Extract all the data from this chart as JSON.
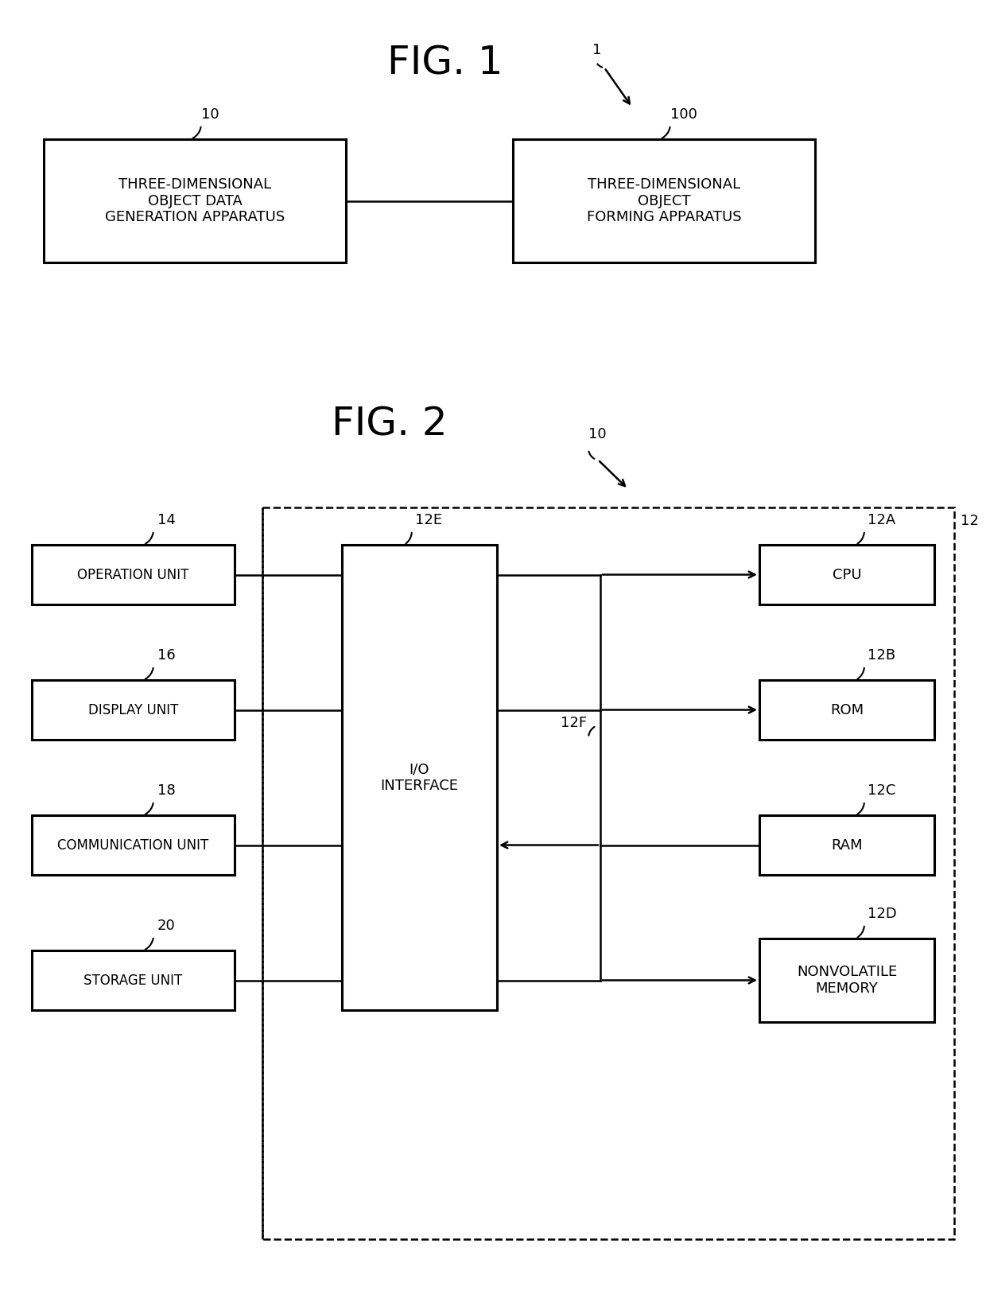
{
  "bg_color": "#ffffff",
  "fig1_title": "FIG. 1",
  "fig1_ref": "1",
  "fig1_box10_label": "THREE-DIMENSIONAL\nOBJECT DATA\nGENERATION APPARATUS",
  "fig1_box10_ref": "10",
  "fig1_box100_label": "THREE-DIMENSIONAL\nOBJECT\nFORMING APPARATUS",
  "fig1_box100_ref": "100",
  "fig2_title": "FIG. 2",
  "fig2_ref": "10",
  "fig2_dashed_ref": "12",
  "fig2_io_label": "I/O\nINTERFACE",
  "fig2_io_ref": "12E",
  "fig2_bus_ref": "12F",
  "fig2_left": [
    {
      "label": "OPERATION UNIT",
      "ref": "14"
    },
    {
      "label": "DISPLAY UNIT",
      "ref": "16"
    },
    {
      "label": "COMMUNICATION UNIT",
      "ref": "18"
    },
    {
      "label": "STORAGE UNIT",
      "ref": "20"
    }
  ],
  "fig2_right": [
    {
      "label": "CPU",
      "ref": "12A",
      "arrow": "right"
    },
    {
      "label": "ROM",
      "ref": "12B",
      "arrow": "right"
    },
    {
      "label": "RAM",
      "ref": "12C",
      "arrow": "left"
    },
    {
      "label": "NONVOLATILE\nMEMORY",
      "ref": "12D",
      "arrow": "right"
    }
  ]
}
